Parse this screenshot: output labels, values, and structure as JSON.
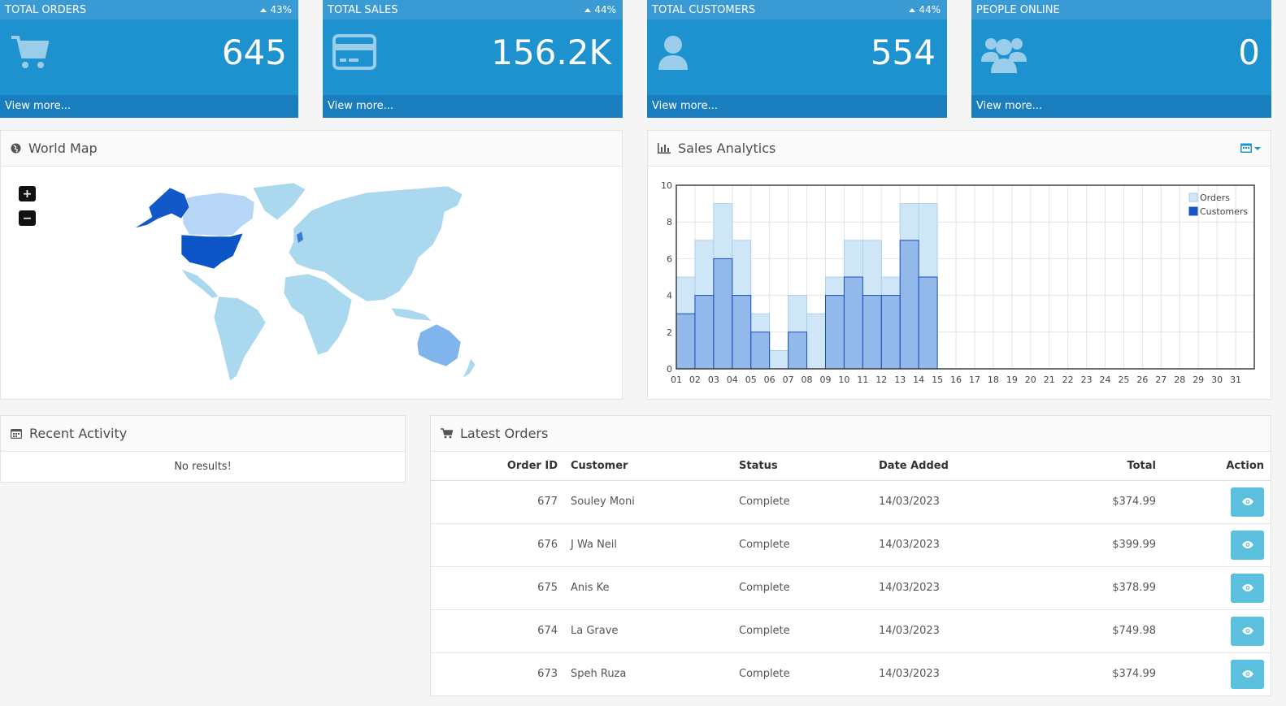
{
  "tiles": [
    {
      "title": "TOTAL ORDERS",
      "percent": "43%",
      "value": "645",
      "link": "View more...",
      "icon": "shopping-cart-icon"
    },
    {
      "title": "TOTAL SALES",
      "percent": "44%",
      "value": "156.2K",
      "link": "View more...",
      "icon": "credit-card-icon"
    },
    {
      "title": "TOTAL CUSTOMERS",
      "percent": "44%",
      "value": "554",
      "link": "View more...",
      "icon": "user-icon"
    },
    {
      "title": "PEOPLE ONLINE",
      "percent": "",
      "value": "0",
      "link": "View more...",
      "icon": "users-icon"
    }
  ],
  "world_map": {
    "title": "World Map",
    "zoom_in": "+",
    "zoom_out": "−"
  },
  "sales": {
    "title": "Sales Analytics"
  },
  "chart_data": {
    "type": "bar",
    "categories": [
      "01",
      "02",
      "03",
      "04",
      "05",
      "06",
      "07",
      "08",
      "09",
      "10",
      "11",
      "12",
      "13",
      "14",
      "15",
      "16",
      "17",
      "18",
      "19",
      "20",
      "21",
      "22",
      "23",
      "24",
      "25",
      "26",
      "27",
      "28",
      "29",
      "30",
      "31"
    ],
    "series": [
      {
        "name": "Orders",
        "values": [
          5,
          7,
          9,
          7,
          3,
          1,
          4,
          3,
          5,
          7,
          7,
          5,
          9,
          9,
          0,
          0,
          0,
          0,
          0,
          0,
          0,
          0,
          0,
          0,
          0,
          0,
          0,
          0,
          0,
          0,
          0
        ]
      },
      {
        "name": "Customers",
        "values": [
          3,
          4,
          6,
          4,
          2,
          0,
          2,
          0,
          4,
          5,
          4,
          4,
          7,
          5,
          0,
          0,
          0,
          0,
          0,
          0,
          0,
          0,
          0,
          0,
          0,
          0,
          0,
          0,
          0,
          0,
          0
        ]
      }
    ],
    "ylim": [
      0,
      10
    ],
    "yticks": [
      "0",
      "2",
      "4",
      "6",
      "8",
      "10"
    ],
    "legend": "top-right",
    "grid": true,
    "colors": {
      "orders": "#cfe6f6",
      "customers": "#7fa9e6"
    }
  },
  "activity": {
    "title": "Recent Activity",
    "empty": "No results!"
  },
  "orders": {
    "title": "Latest Orders",
    "headers": {
      "id": "Order ID",
      "customer": "Customer",
      "status": "Status",
      "date": "Date Added",
      "total": "Total",
      "action": "Action"
    },
    "rows": [
      {
        "id": "677",
        "customer": "Souley Moni",
        "status": "Complete",
        "date": "14/03/2023",
        "total": "$374.99"
      },
      {
        "id": "676",
        "customer": "J Wa Neil",
        "status": "Complete",
        "date": "14/03/2023",
        "total": "$399.99"
      },
      {
        "id": "675",
        "customer": "Anis Ke",
        "status": "Complete",
        "date": "14/03/2023",
        "total": "$378.99"
      },
      {
        "id": "674",
        "customer": "La Grave",
        "status": "Complete",
        "date": "14/03/2023",
        "total": "$749.98"
      },
      {
        "id": "673",
        "customer": "Speh Ruza",
        "status": "Complete",
        "date": "14/03/2023",
        "total": "$374.99"
      }
    ]
  },
  "accent": "#1e91cf"
}
